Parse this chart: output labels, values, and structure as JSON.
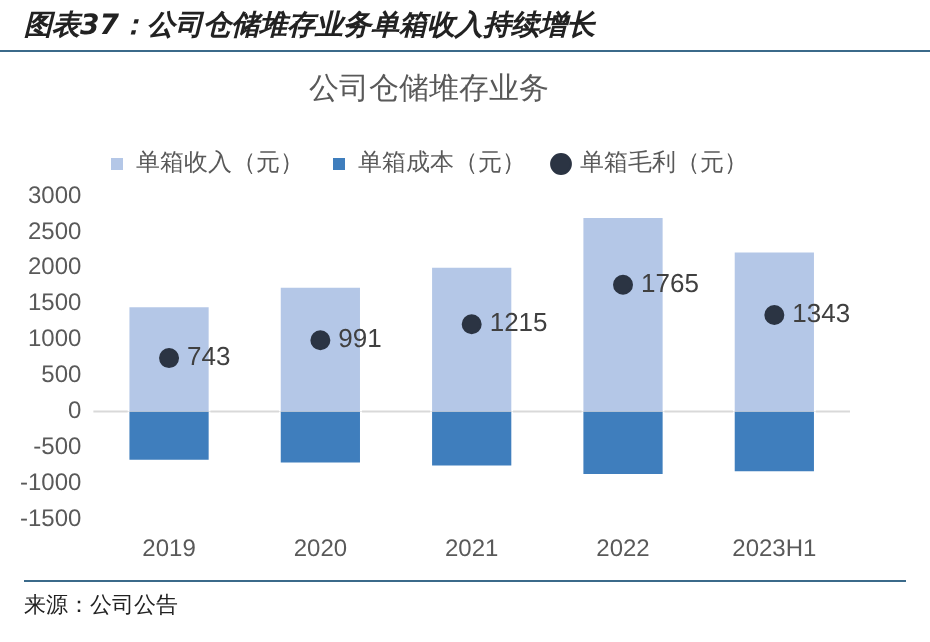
{
  "chart_data": {
    "type": "bar",
    "title": "公司仓储堆存业务",
    "subtitle": "图表37：公司仓储堆存业务单箱收入持续增长",
    "annotations": [
      "来源：公司公告"
    ],
    "categories": [
      "2019",
      "2020",
      "2021",
      "2022",
      "2023H1"
    ],
    "stacked": true,
    "series": [
      {
        "name": "单箱收入（元）",
        "color": "#b4c7e7",
        "values": [
          1480,
          1750,
          2030,
          2720,
          2240
        ]
      },
      {
        "name": "单箱成本（元）",
        "color": "#3f7ebd",
        "values": [
          -700,
          -740,
          -780,
          -900,
          -860
        ]
      },
      {
        "name": "单箱毛利（元）",
        "type": "scatter",
        "color": "#2b3443",
        "values": [
          743,
          991,
          1215,
          1765,
          1343
        ],
        "value_labels": [
          "743",
          "991",
          "1215",
          "1765",
          "1343"
        ]
      }
    ],
    "ylim": [
      -1500,
      3000
    ],
    "yticks": [
      -1500,
      -1000,
      -500,
      0,
      500,
      1000,
      1500,
      2000,
      2500,
      3000
    ],
    "grid": false,
    "ref_lines": [
      {
        "axis": "y",
        "value": 0,
        "color": "#d9d9d9"
      }
    ],
    "legend": "top",
    "marker": "circle"
  }
}
